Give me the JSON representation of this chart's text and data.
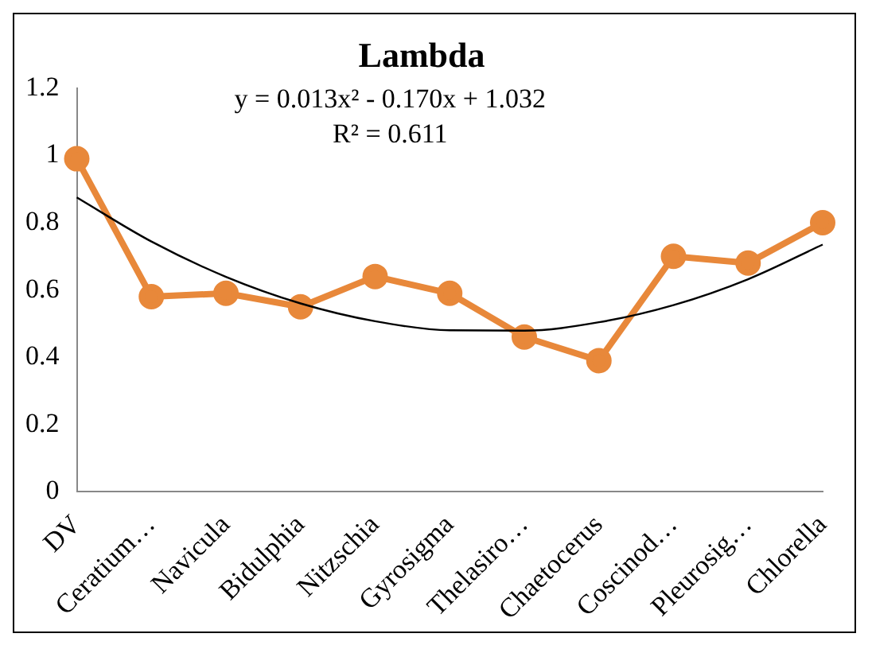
{
  "chart_data": {
    "type": "line",
    "title": "Lambda",
    "categories": [
      "DV",
      "Ceratium…",
      "Navicula",
      "Bidulphia",
      "Nitzschia",
      "Gyrosigma",
      "Thelasiro…",
      "Chaetocerus",
      "Coscinod…",
      "Pleurosig…",
      "Chlorella"
    ],
    "series": [
      {
        "color": "#e8883a",
        "marker": "circle",
        "values": [
          0.99,
          0.58,
          0.59,
          0.55,
          0.64,
          0.59,
          0.46,
          0.39,
          0.7,
          0.68,
          0.8
        ]
      },
      {
        "type": "line",
        "color": "#000000",
        "marker": "none",
        "values": [
          0.875,
          0.744,
          0.639,
          0.56,
          0.507,
          0.48,
          0.479,
          0.504,
          0.555,
          0.632,
          0.735
        ]
      }
    ],
    "ylim": [
      0,
      1.2
    ],
    "yticks": [
      0,
      0.2,
      0.4,
      0.6,
      0.8,
      1,
      1.2
    ],
    "annotations": [
      "y = 0.013x² - 0.170x + 1.032",
      "R² = 0.611"
    ],
    "grid": false,
    "legend": false
  }
}
